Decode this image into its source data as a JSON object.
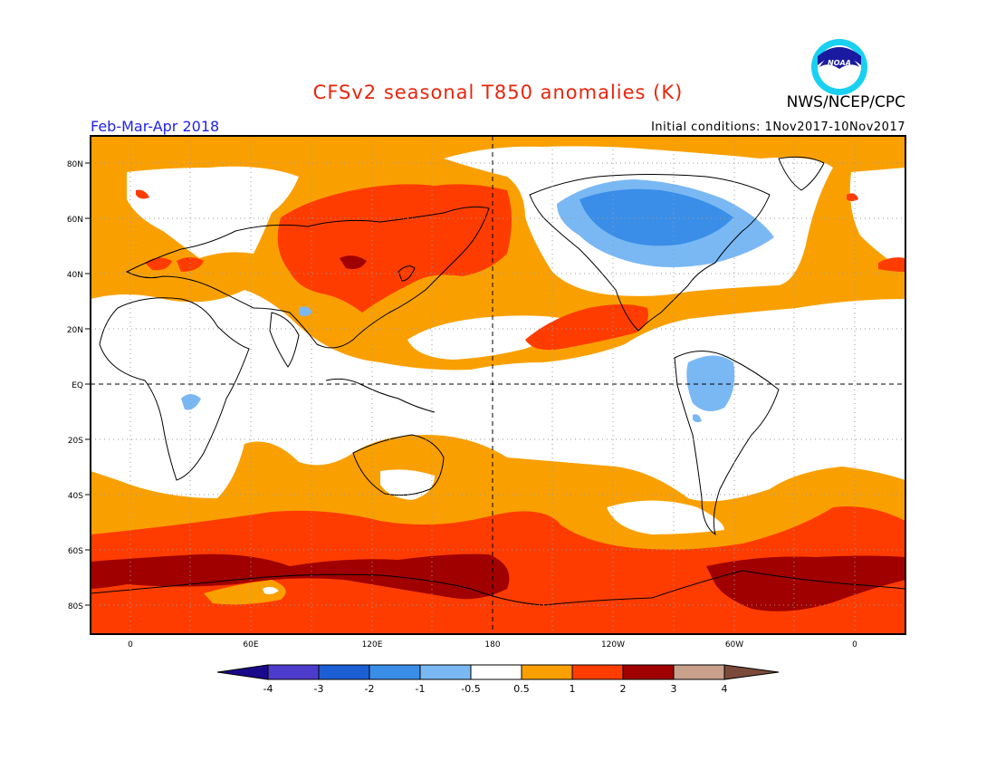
{
  "header": {
    "title": "CFSv2 seasonal T850 anomalies (K)",
    "agency": "NWS/NCEP/CPC",
    "period": "Feb-Mar-Apr 2018",
    "initial_conditions": "Initial conditions: 1Nov2017-10Nov2017",
    "logo_text": "NOAA"
  },
  "axes": {
    "lat_labels": [
      "80N",
      "60N",
      "40N",
      "20N",
      "EQ",
      "20S",
      "40S",
      "60S",
      "80S"
    ],
    "lon_labels": [
      "0",
      "60E",
      "120E",
      "180",
      "120W",
      "60W",
      "0"
    ]
  },
  "colorbar": {
    "labels": [
      "-4",
      "-3",
      "-2",
      "-1",
      "-0.5",
      "0.5",
      "1",
      "2",
      "3",
      "4"
    ],
    "colors": [
      "#1a0a8a",
      "#4d3bcc",
      "#1c5fd4",
      "#3a8ee8",
      "#7ab8f4",
      "#ffffff",
      "#f9a000",
      "#ff3c00",
      "#a00000",
      "#c8a08c",
      "#7a4a3a"
    ]
  },
  "palette": {
    "warm1": "#f9a000",
    "warm2": "#ff3c00",
    "warm3": "#a00000",
    "cool1": "#7ab8f4",
    "cool2": "#3a8ee8",
    "neutral": "#ffffff"
  }
}
